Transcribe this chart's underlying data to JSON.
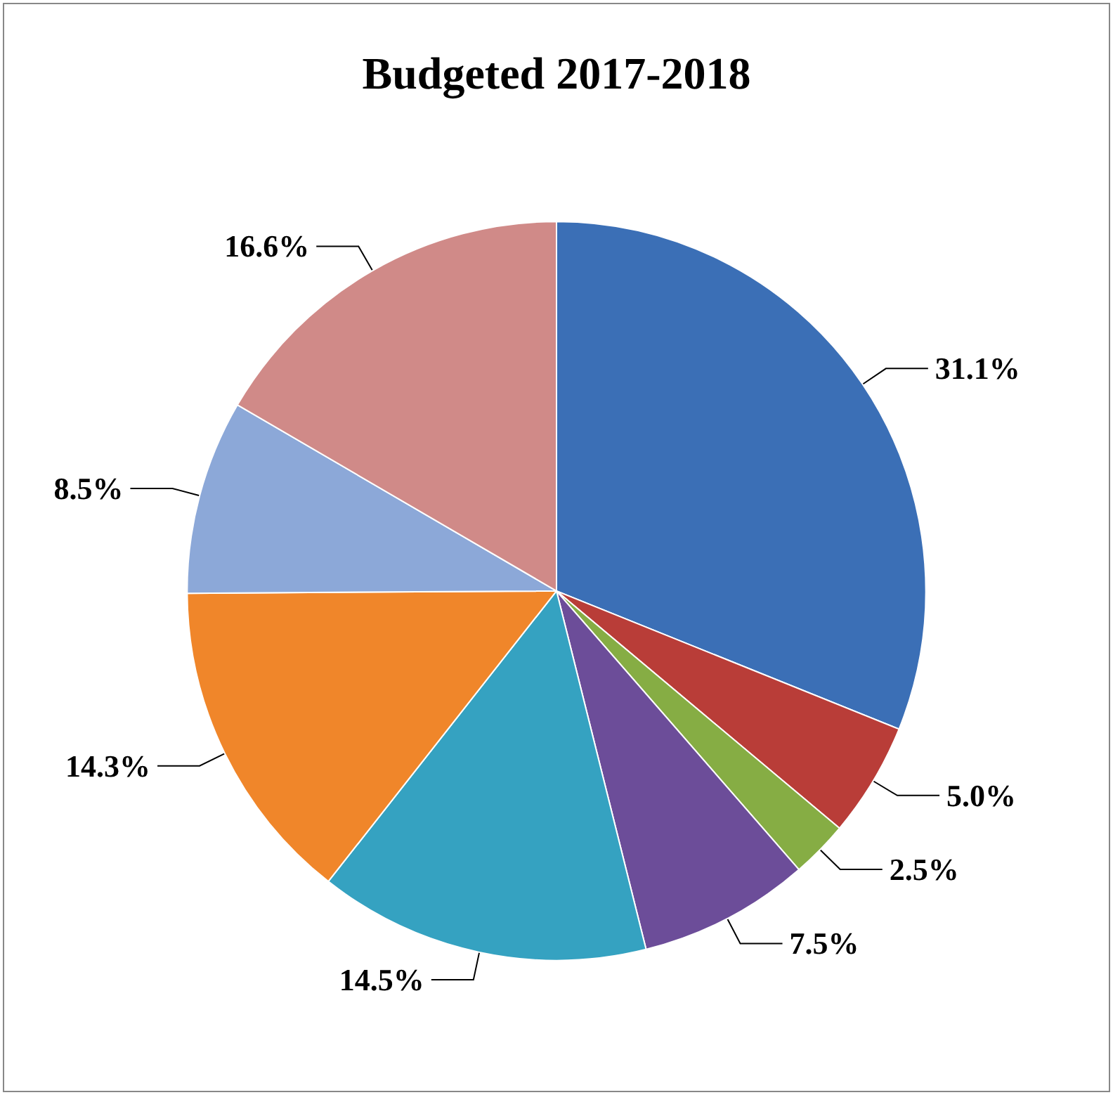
{
  "chart_data": {
    "type": "pie",
    "title": "Budgeted 2017-2018",
    "categories": [
      null,
      null,
      null,
      null,
      null,
      null,
      null,
      null
    ],
    "values": [
      31.1,
      5.0,
      2.5,
      7.5,
      14.5,
      14.3,
      8.5,
      16.6
    ],
    "value_labels": [
      "31.1%",
      "5.0%",
      "2.5%",
      "7.5%",
      "14.5%",
      "14.3%",
      "8.5%",
      "16.6%"
    ],
    "colors": [
      "#3b6fb6",
      "#b93d38",
      "#86ad44",
      "#6c4d99",
      "#35a2c1",
      "#f0862a",
      "#8ca8d8",
      "#d08a88"
    ]
  }
}
